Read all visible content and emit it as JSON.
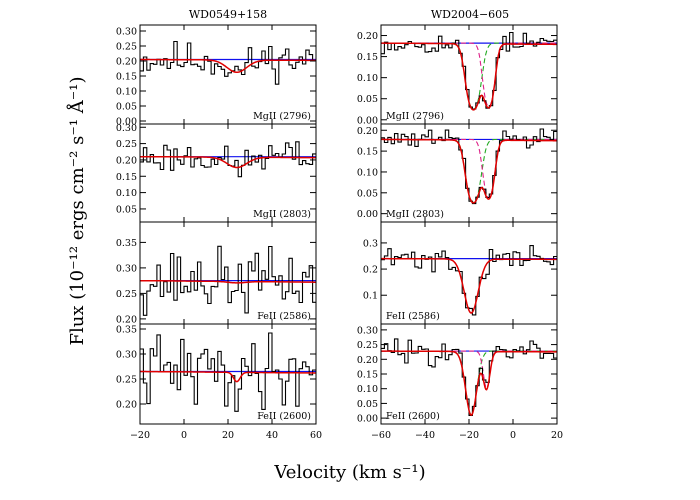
{
  "figure": {
    "ylabel": "Flux (10⁻¹² ergs cm⁻² s⁻¹ Å⁻¹)",
    "xlabel": "Velocity (km s⁻¹)"
  },
  "colors": {
    "data": "#000000",
    "continuum": "#1010ee",
    "model": "#e00000",
    "component_1": "#22aa22",
    "component_2": "#dd2288"
  },
  "chart_data": [
    {
      "type": "line",
      "column_title": "WD0549+158",
      "panel_label": "MgII (2796)",
      "xlim": [
        -20,
        60
      ],
      "ylim": [
        -0.01,
        0.32
      ],
      "xticks": [
        "-20",
        "0",
        "20",
        "40",
        "60"
      ],
      "yticks": [
        "0.00",
        "0.05",
        "0.10",
        "0.15",
        "0.20",
        "0.25",
        "0.30"
      ],
      "continuum": 0.205,
      "absorption": [
        {
          "center": 24,
          "sigma": 4.5,
          "depth": 0.2
        }
      ],
      "noise": 0.03,
      "seed": 11
    },
    {
      "type": "line",
      "column_title": "WD0549+158",
      "panel_label": "MgII (2803)",
      "xlim": [
        -20,
        60
      ],
      "ylim": [
        0.01,
        0.31
      ],
      "xticks": [
        "-20",
        "0",
        "20",
        "40",
        "60"
      ],
      "yticks": [
        "0.05",
        "0.10",
        "0.15",
        "0.20",
        "0.25",
        "0.30"
      ],
      "continuum": 0.21,
      "absorption": [
        {
          "center": 24,
          "sigma": 4.5,
          "depth": 0.15
        }
      ],
      "noise": 0.025,
      "seed": 23
    },
    {
      "type": "line",
      "column_title": "WD0549+158",
      "panel_label": "FeII (2586)",
      "xlim": [
        -20,
        60
      ],
      "ylim": [
        0.19,
        0.39
      ],
      "xticks": [
        "-20",
        "0",
        "20",
        "40",
        "60"
      ],
      "yticks": [
        "0.20",
        "0.25",
        "0.30",
        "0.35"
      ],
      "continuum": 0.275,
      "absorption": [
        {
          "center": 24,
          "sigma": 4,
          "depth": 0.01
        }
      ],
      "noise": 0.03,
      "seed": 37
    },
    {
      "type": "line",
      "column_title": "WD0549+158",
      "panel_label": "FeII (2600)",
      "xlim": [
        -20,
        60
      ],
      "ylim": [
        0.16,
        0.36
      ],
      "xticks": [
        "-20",
        "0",
        "20",
        "40",
        "60"
      ],
      "yticks": [
        "0.20",
        "0.25",
        "0.30",
        "0.35"
      ],
      "continuum": 0.265,
      "absorption": [
        {
          "center": 24,
          "sigma": 1.5,
          "depth": 0.07
        }
      ],
      "noise": 0.035,
      "seed": 41
    },
    {
      "type": "line",
      "column_title": "WD2004−605",
      "panel_label": "MgII (2796)",
      "xlim": [
        -60,
        20
      ],
      "ylim": [
        -0.01,
        0.225
      ],
      "xticks": [
        "-60",
        "-40",
        "-20",
        "0",
        "20"
      ],
      "yticks": [
        "0.00",
        "0.05",
        "0.10",
        "0.15",
        "0.20"
      ],
      "continuum": 0.182,
      "absorption": [
        {
          "center": -18,
          "sigma": 2.5,
          "depth": 0.9,
          "component": "a"
        },
        {
          "center": -11,
          "sigma": 2.0,
          "depth": 0.8,
          "component": "b"
        }
      ],
      "saturated": true,
      "noise": 0.012,
      "seed": 53
    },
    {
      "type": "line",
      "column_title": "WD2004−605",
      "panel_label": "MgII (2803)",
      "xlim": [
        -60,
        20
      ],
      "ylim": [
        -0.02,
        0.215
      ],
      "xticks": [
        "-60",
        "-40",
        "-20",
        "0",
        "20"
      ],
      "yticks": [
        "0.00",
        "0.05",
        "0.10",
        "0.15",
        "0.20"
      ],
      "continuum": 0.178,
      "absorption": [
        {
          "center": -18,
          "sigma": 2.5,
          "depth": 0.85,
          "component": "a"
        },
        {
          "center": -11,
          "sigma": 2.0,
          "depth": 0.7,
          "component": "b"
        }
      ],
      "saturated": true,
      "noise": 0.012,
      "seed": 61
    },
    {
      "type": "line",
      "column_title": "WD2004−605",
      "panel_label": "FeII (2586)",
      "xlim": [
        -60,
        20
      ],
      "ylim": [
        -0.01,
        0.38
      ],
      "xticks": [
        "-60",
        "-40",
        "-20",
        "0",
        "20"
      ],
      "yticks": [
        "0.1",
        "0.2",
        "0.3"
      ],
      "continuum": 0.24,
      "absorption": [
        {
          "center": -19,
          "sigma": 3.2,
          "depth": 0.86
        }
      ],
      "noise": 0.025,
      "seed": 71
    },
    {
      "type": "line",
      "column_title": "WD2004−605",
      "panel_label": "FeII (2600)",
      "xlim": [
        -60,
        20
      ],
      "ylim": [
        -0.02,
        0.32
      ],
      "xticks": [
        "-60",
        "-40",
        "-20",
        "0",
        "20"
      ],
      "yticks": [
        "0.00",
        "0.05",
        "0.10",
        "0.15",
        "0.20",
        "0.25",
        "0.30"
      ],
      "continuum": 0.228,
      "absorption": [
        {
          "center": -19,
          "sigma": 2.5,
          "depth": 0.95,
          "component": "a"
        },
        {
          "center": -12,
          "sigma": 1.5,
          "depth": 0.55,
          "component": "b"
        }
      ],
      "noise": 0.02,
      "seed": 83
    }
  ]
}
